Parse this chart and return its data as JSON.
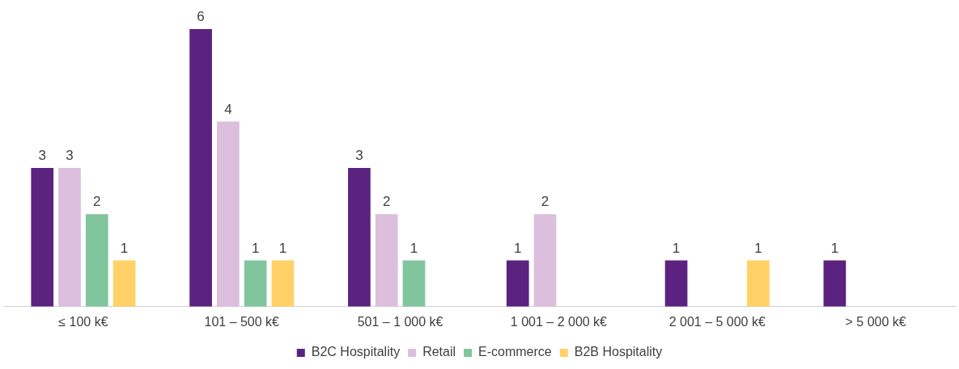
{
  "chart_data": {
    "type": "bar",
    "categories": [
      "≤ 100 k€",
      "101 – 500 k€",
      "501 – 1 000 k€",
      "1 001 – 2 000 k€",
      "2 001 – 5 000 k€",
      "> 5 000 k€"
    ],
    "series": [
      {
        "name": "B2C Hospitality",
        "color": "#5b2280",
        "values": [
          3,
          6,
          3,
          1,
          1,
          1
        ]
      },
      {
        "name": "Retail",
        "color": "#dbbfdd",
        "values": [
          3,
          4,
          2,
          2,
          null,
          null
        ]
      },
      {
        "name": "E-commerce",
        "color": "#80c59c",
        "values": [
          2,
          1,
          1,
          null,
          null,
          null
        ]
      },
      {
        "name": "B2B Hospitality",
        "color": "#ffd166",
        "values": [
          1,
          1,
          null,
          null,
          1,
          null
        ]
      }
    ],
    "data_labels": true,
    "legend": "bottom",
    "grid": false
  }
}
